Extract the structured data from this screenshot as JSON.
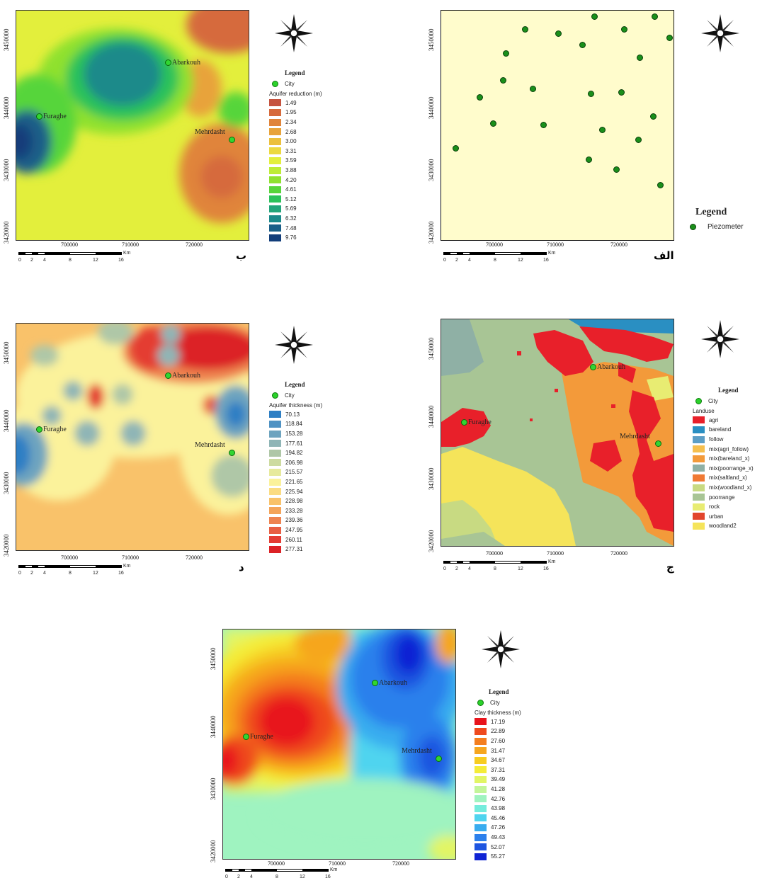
{
  "axes": {
    "yticks": [
      "3450000",
      "3440000",
      "3430000",
      "3420000"
    ],
    "xticks": [
      "700000",
      "710000",
      "720000"
    ],
    "scale_labels": [
      "0",
      "2",
      "4",
      "8",
      "12",
      "16"
    ],
    "scale_unit": "Km"
  },
  "cities": {
    "abarkouh": "Abarkouh",
    "furaghe": "Furaghe",
    "mehrdasht": "Mehrdasht"
  },
  "panels": {
    "alef": {
      "label": "الف",
      "legend_title": "Legend",
      "legend_item": "Piezometer",
      "background": "#fffccc"
    },
    "be": {
      "label": "ب",
      "legend_title": "Legend",
      "city_label": "City",
      "layer_title": "Aquifer reduction (m)",
      "classes": [
        {
          "value": "1.49",
          "color": "#c5533f"
        },
        {
          "value": "1.95",
          "color": "#d66a3c"
        },
        {
          "value": "2.34",
          "color": "#e0843a"
        },
        {
          "value": "2.68",
          "color": "#e8a33a"
        },
        {
          "value": "3.00",
          "color": "#ecc03c"
        },
        {
          "value": "3.31",
          "color": "#ecd93f"
        },
        {
          "value": "3.59",
          "color": "#e3ef3c"
        },
        {
          "value": "3.88",
          "color": "#bdec35"
        },
        {
          "value": "4.20",
          "color": "#8fe12f"
        },
        {
          "value": "4.61",
          "color": "#57d53a"
        },
        {
          "value": "5.12",
          "color": "#2cc25a"
        },
        {
          "value": "5.69",
          "color": "#23a57a"
        },
        {
          "value": "6.32",
          "color": "#1b8a8a"
        },
        {
          "value": "7.48",
          "color": "#1a5f88"
        },
        {
          "value": "9.76",
          "color": "#123e7a"
        }
      ]
    },
    "jim": {
      "label": "ج",
      "legend_title": "Legend",
      "city_label": "City",
      "layer_title": "Landuse",
      "classes": [
        {
          "value": "agri",
          "color": "#e8202a"
        },
        {
          "value": "bareland",
          "color": "#2a8fc2"
        },
        {
          "value": "follow",
          "color": "#5c9ec6"
        },
        {
          "value": "mix(agri_follow)",
          "color": "#f5bf4e"
        },
        {
          "value": "mix(bareland_x)",
          "color": "#f39a3a"
        },
        {
          "value": "mix(poorrange_x)",
          "color": "#8fb0a5"
        },
        {
          "value": "mix(saltland_x)",
          "color": "#f07a34"
        },
        {
          "value": "mix(woodland_x)",
          "color": "#c8da82"
        },
        {
          "value": "poorrange",
          "color": "#a8c595"
        },
        {
          "value": "rock",
          "color": "#e8ec72"
        },
        {
          "value": "urban",
          "color": "#e2452c"
        },
        {
          "value": "woodland2",
          "color": "#f5e45a"
        }
      ]
    },
    "dal": {
      "label": "د",
      "legend_title": "Legend",
      "city_label": "City",
      "layer_title": "Aquifer thickness (m)",
      "classes": [
        {
          "value": "70.13",
          "color": "#2e7fc4"
        },
        {
          "value": "118.84",
          "color": "#4f92c3"
        },
        {
          "value": "153.28",
          "color": "#6ea4bf"
        },
        {
          "value": "177.61",
          "color": "#8fb5b6"
        },
        {
          "value": "194.82",
          "color": "#afc7a7"
        },
        {
          "value": "206.98",
          "color": "#cddba0"
        },
        {
          "value": "215.57",
          "color": "#e7ea9c"
        },
        {
          "value": "221.65",
          "color": "#fbf29b"
        },
        {
          "value": "225.94",
          "color": "#fbdc82"
        },
        {
          "value": "228.98",
          "color": "#f9c26a"
        },
        {
          "value": "233.28",
          "color": "#f4a45a"
        },
        {
          "value": "239.36",
          "color": "#ee8350"
        },
        {
          "value": "247.95",
          "color": "#e85e42"
        },
        {
          "value": "260.11",
          "color": "#e43c33"
        },
        {
          "value": "277.31",
          "color": "#dc2226"
        }
      ]
    },
    "he": {
      "legend_title": "Legend",
      "city_label": "City",
      "layer_title": "Clay thickness (m)",
      "classes": [
        {
          "value": "17.19",
          "color": "#e8141c"
        },
        {
          "value": "22.89",
          "color": "#ef4a1e"
        },
        {
          "value": "27.60",
          "color": "#f47e1f"
        },
        {
          "value": "31.47",
          "color": "#f6a61f"
        },
        {
          "value": "34.67",
          "color": "#f7cc20"
        },
        {
          "value": "37.31",
          "color": "#f4ec38"
        },
        {
          "value": "39.49",
          "color": "#e2f565"
        },
        {
          "value": "41.28",
          "color": "#c3f59a"
        },
        {
          "value": "42.76",
          "color": "#9ff3c0"
        },
        {
          "value": "43.98",
          "color": "#74ecdc"
        },
        {
          "value": "45.46",
          "color": "#4fd4ef"
        },
        {
          "value": "47.26",
          "color": "#39acef"
        },
        {
          "value": "49.43",
          "color": "#2c80ec"
        },
        {
          "value": "52.07",
          "color": "#1e55e0"
        },
        {
          "value": "55.27",
          "color": "#1024d4"
        }
      ]
    }
  }
}
